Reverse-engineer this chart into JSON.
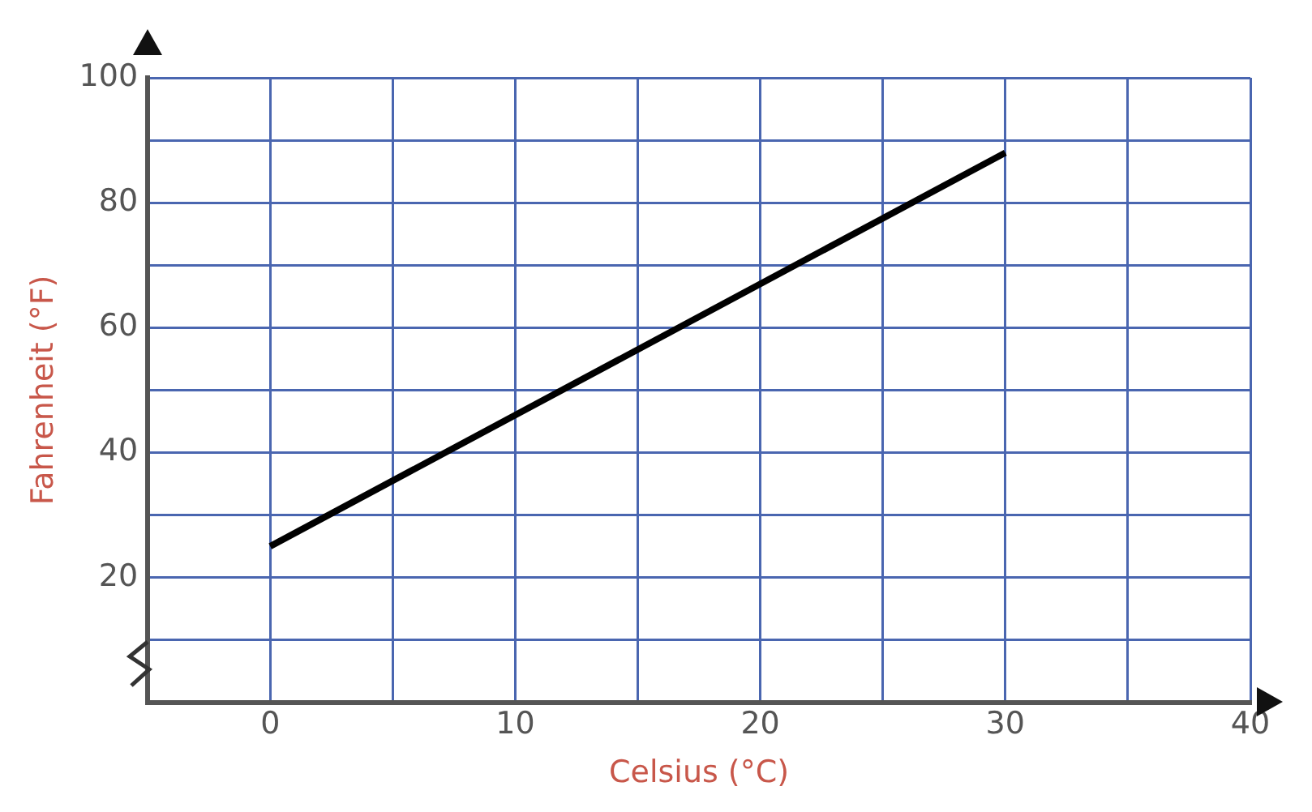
{
  "chart_data": {
    "type": "line",
    "xlabel": "Celsius (°C)",
    "ylabel": "Fahrenheit (°F)",
    "x": [
      0,
      30
    ],
    "series": [
      {
        "color": "#000000",
        "values": [
          25,
          88
        ]
      }
    ],
    "xlim": [
      -5,
      40
    ],
    "xticks": [
      0,
      {
        "value": 5,
        "label": null
      },
      10,
      {
        "value": 15,
        "label": null
      },
      20,
      {
        "value": 25,
        "label": null
      },
      30,
      {
        "value": 35,
        "label": null
      },
      40
    ],
    "ylim": [
      0,
      100
    ],
    "yticks": [
      {
        "value": 10,
        "label": null
      },
      20,
      {
        "value": 30,
        "label": null
      },
      40,
      {
        "value": 50,
        "label": null
      },
      60,
      {
        "value": 70,
        "label": null
      },
      80,
      {
        "value": 90,
        "label": null
      },
      100
    ],
    "grid": true,
    "legend": false,
    "marker": "none",
    "line_style": "solid"
  }
}
